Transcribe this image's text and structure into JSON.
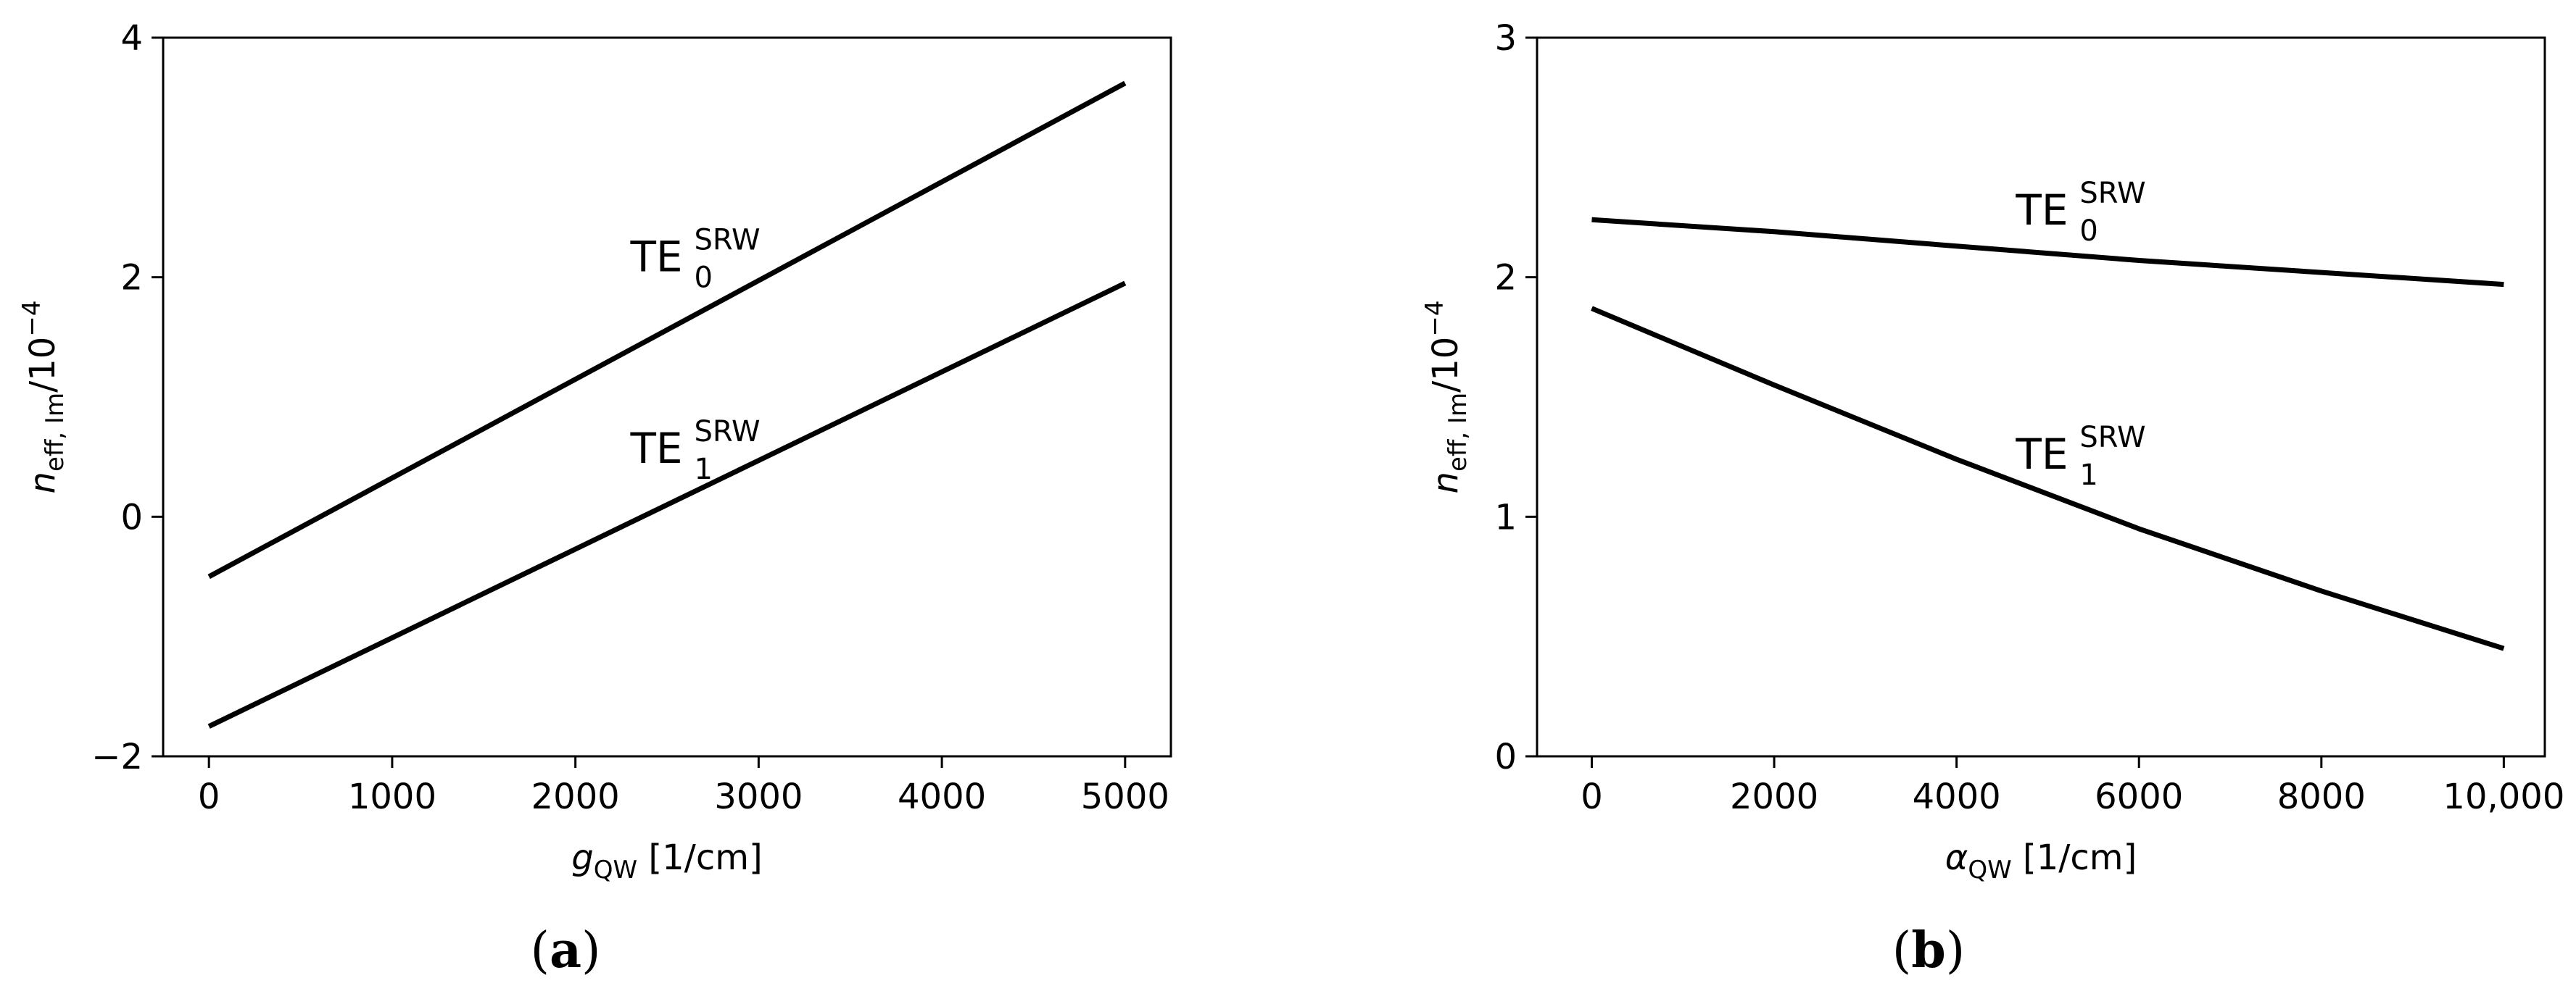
{
  "chart_data": [
    {
      "type": "line",
      "panel_label": "a",
      "xlabel": {
        "symbol": "g",
        "subscript": "QW",
        "unit": " [1/cm]"
      },
      "ylabel": {
        "symbol": "n",
        "subscript": "eff, Im",
        "suffix": "/10",
        "exponent": "−4"
      },
      "xlim": [
        -250,
        5250
      ],
      "ylim": [
        -2,
        4
      ],
      "x_ticks": [
        0,
        1000,
        2000,
        3000,
        4000,
        5000
      ],
      "x_tick_labels": [
        "0",
        "1000",
        "2000",
        "3000",
        "4000",
        "5000"
      ],
      "y_ticks": [
        -2,
        0,
        2,
        4
      ],
      "y_tick_labels": [
        "−2",
        "0",
        "2",
        "4"
      ],
      "grid": false,
      "series": [
        {
          "name": "TE0SRW",
          "label": {
            "base": "TE",
            "sub": "0",
            "sup": "SRW"
          },
          "label_at": [
            2300,
            2.05
          ],
          "x": [
            0,
            5000
          ],
          "y": [
            -0.5,
            3.62
          ]
        },
        {
          "name": "TE1SRW",
          "label": {
            "base": "TE",
            "sub": "1",
            "sup": "SRW"
          },
          "label_at": [
            2300,
            0.45
          ],
          "x": [
            0,
            5000
          ],
          "y": [
            -1.75,
            1.95
          ]
        }
      ]
    },
    {
      "type": "line",
      "panel_label": "b",
      "xlabel": {
        "symbol": "α",
        "subscript": "QW",
        "unit": " [1/cm]"
      },
      "ylabel": {
        "symbol": "n",
        "subscript": "eff, Im",
        "suffix": "/10",
        "exponent": "−4"
      },
      "xlim": [
        -600,
        10450
      ],
      "ylim": [
        0,
        3
      ],
      "x_ticks": [
        0,
        2000,
        4000,
        6000,
        8000,
        10000
      ],
      "x_tick_labels": [
        "0",
        "2000",
        "4000",
        "6000",
        "8000",
        "10,000"
      ],
      "y_ticks": [
        0,
        1,
        2,
        3
      ],
      "y_tick_labels": [
        "0",
        "1",
        "2",
        "3"
      ],
      "grid": false,
      "series": [
        {
          "name": "TE0SRW",
          "label": {
            "base": "TE",
            "sub": "0",
            "sup": "SRW"
          },
          "label_at": [
            4650,
            2.22
          ],
          "x": [
            0,
            2000,
            4000,
            6000,
            8000,
            10000
          ],
          "y": [
            2.24,
            2.19,
            2.13,
            2.07,
            2.02,
            1.97
          ]
        },
        {
          "name": "TE1SRW",
          "label": {
            "base": "TE",
            "sub": "1",
            "sup": "SRW"
          },
          "label_at": [
            4650,
            1.2
          ],
          "x": [
            0,
            2000,
            4000,
            6000,
            8000,
            10000
          ],
          "y": [
            1.87,
            1.55,
            1.24,
            0.95,
            0.69,
            0.45
          ]
        }
      ]
    }
  ]
}
